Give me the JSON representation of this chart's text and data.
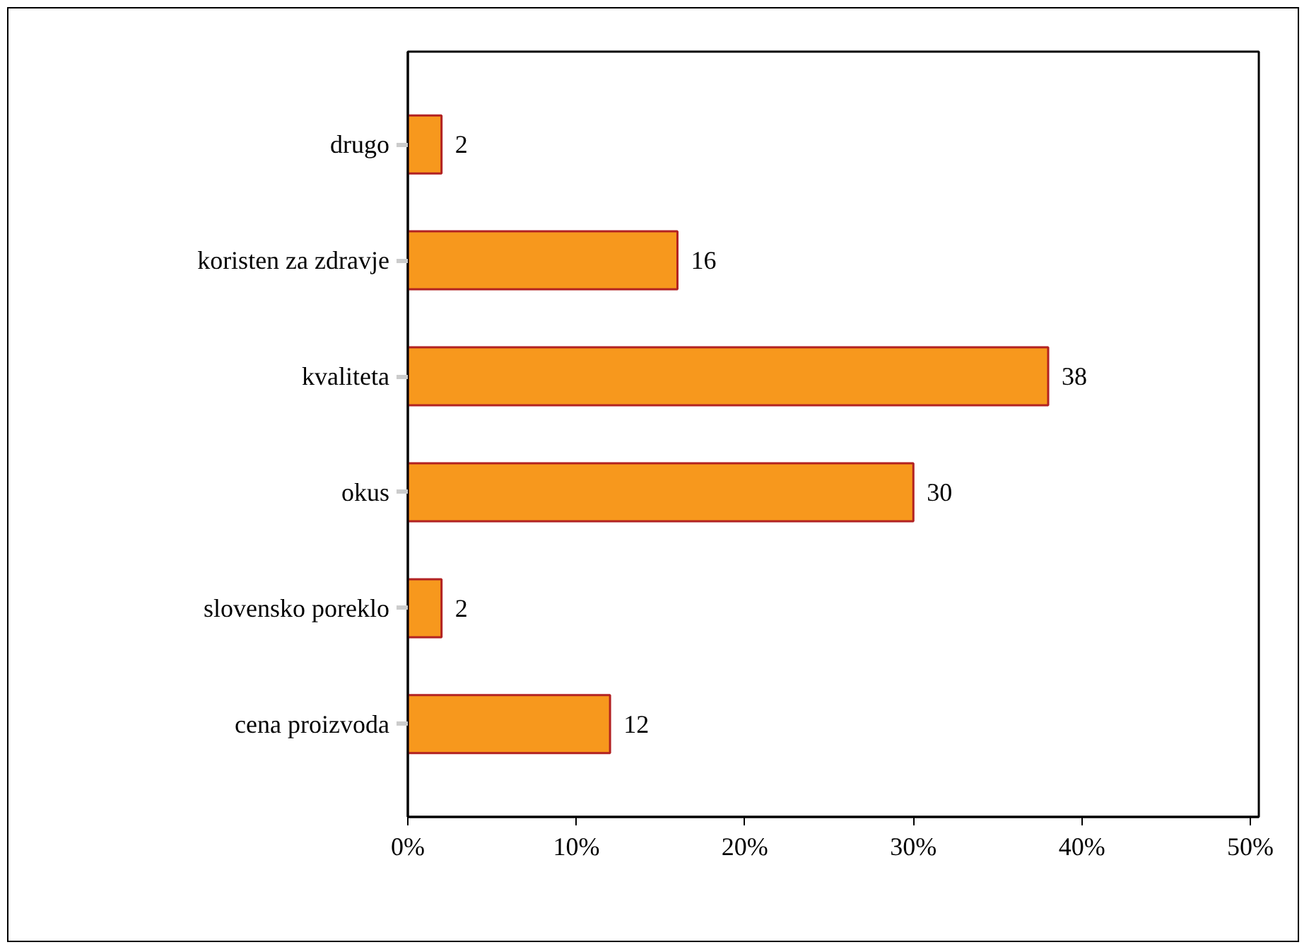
{
  "chart_data": {
    "type": "bar",
    "orientation": "horizontal",
    "categories": [
      "drugo",
      "koristen za zdravje",
      "kvaliteta",
      "okus",
      "slovensko poreklo",
      "cena proizvoda"
    ],
    "values": [
      2,
      16,
      38,
      30,
      2,
      12
    ],
    "color": "#f7981d",
    "data_labels": true,
    "xlim": [
      0,
      50.5
    ],
    "xticks": [
      {
        "value": 0,
        "label": "0%"
      },
      {
        "value": 10,
        "label": "10%"
      },
      {
        "value": 20,
        "label": "20%"
      },
      {
        "value": 30,
        "label": "30%"
      },
      {
        "value": 40,
        "label": "40%"
      },
      {
        "value": 50,
        "label": "50%"
      }
    ],
    "grid": false
  }
}
